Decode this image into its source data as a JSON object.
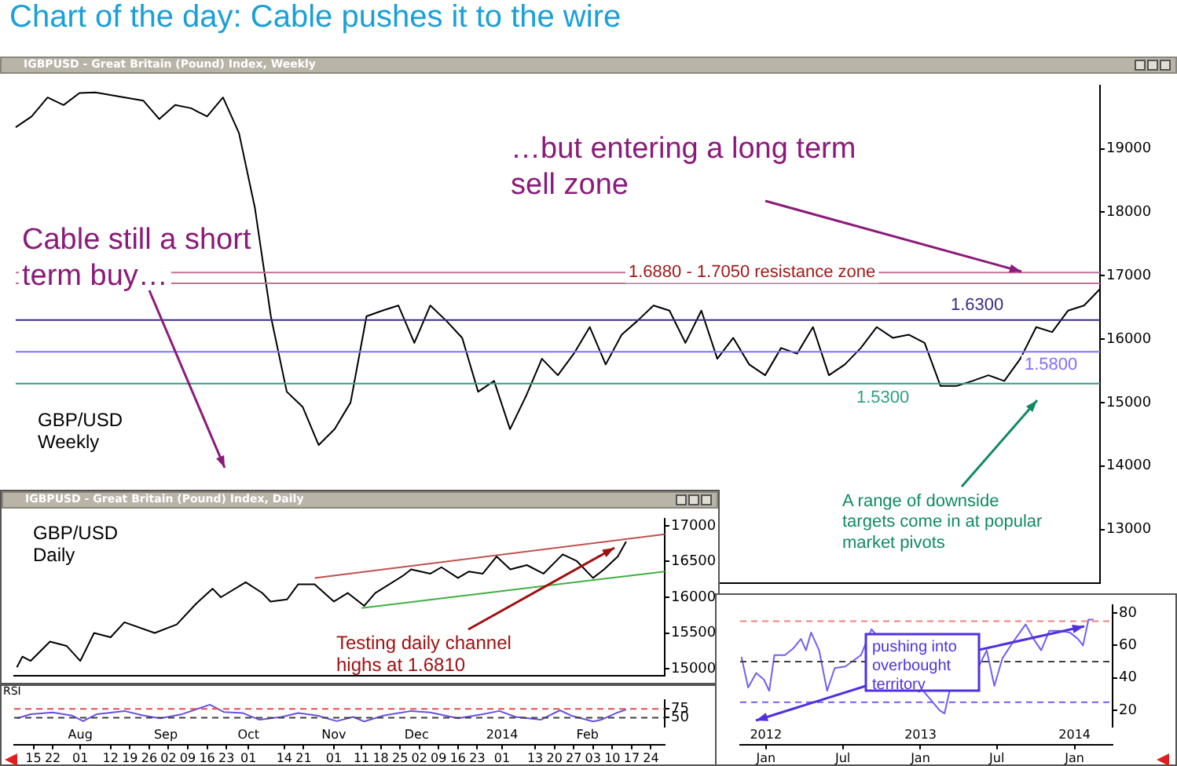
{
  "chart_data": [
    {
      "type": "line",
      "title": "Chart of the day:  Cable pushes it to the wire",
      "subtitle": "IGBPUSD - Great Britain (Pound) Index, Weekly",
      "categories": [
        null,
        null,
        null,
        null,
        null,
        null,
        null,
        null,
        null,
        null,
        null,
        null,
        null,
        null,
        null,
        null,
        null,
        null,
        null,
        null,
        null,
        null,
        null,
        null,
        null,
        null,
        null,
        null,
        null,
        null,
        null,
        null,
        null,
        null,
        null,
        null,
        null,
        null,
        null,
        null,
        null,
        null,
        null,
        null,
        null,
        null,
        null,
        null,
        null,
        null,
        null,
        null,
        null,
        null,
        null,
        null,
        null,
        null,
        null,
        null,
        null,
        null,
        null,
        null,
        null,
        null,
        null,
        null,
        null
      ],
      "values": [
        19340,
        19510,
        19810,
        19690,
        19880,
        19890,
        null,
        null,
        19760,
        19470,
        19690,
        19640,
        19510,
        19810,
        19250,
        18070,
        16360,
        15170,
        14930,
        14330,
        14580,
        15000,
        16360,
        16450,
        16530,
        15940,
        16530,
        16290,
        16020,
        15170,
        15340,
        14580,
        15100,
        15690,
        15430,
        15770,
        16190,
        15600,
        16070,
        16290,
        16530,
        16450,
        15940,
        16450,
        15690,
        16020,
        15600,
        15430,
        15860,
        15770,
        16190,
        15430,
        15600,
        15860,
        16190,
        16020,
        16070,
        15940,
        15260,
        15260,
        15340,
        15430,
        15340,
        15690,
        16190,
        16110,
        16450,
        16530,
        16790
      ],
      "color": "#000000",
      "ylim": [
        12150,
        20000
      ],
      "yticks": [
        13000,
        14000,
        15000,
        16000,
        17000,
        18000,
        19000
      ],
      "tick_labels": "y",
      "ref_lines": [
        {
          "axis": "y",
          "value": 16880,
          "color": "#c8709a"
        },
        {
          "axis": "y",
          "value": 17050,
          "color": "#c8709a"
        },
        {
          "axis": "y",
          "value": 16300,
          "color": "#3a2a80"
        },
        {
          "axis": "y",
          "value": 15800,
          "color": "#8070ff"
        },
        {
          "axis": "y",
          "value": 15300,
          "color": "#30a080"
        }
      ],
      "annotations": [
        "Cable still a short term buy…",
        "…but entering a long term sell zone",
        "GBP/USD Weekly",
        "A range of downside targets come in at popular market pivots",
        "1.6880 - 1.7050 resistance zone",
        "1.6300",
        "1.5800",
        "1.5300"
      ]
    },
    {
      "type": "line",
      "title": "IGBPUSD - Great Britain (Pound) Index, Daily",
      "series": [
        {
          "color": "#000000",
          "x": [
            "2013-07-09",
            "2013-07-11",
            "2013-07-14",
            "2013-07-21",
            "2013-07-27",
            "2013-08-01",
            "2013-08-06",
            "2013-08-12",
            "2013-08-17",
            "2013-08-28",
            "2013-09-05",
            "2013-09-12",
            "2013-09-18",
            "2013-09-21",
            "2013-09-30",
            "2013-10-06",
            "2013-10-09",
            "2013-10-15",
            "2013-10-19",
            "2013-10-25",
            "2013-11-01",
            "2013-11-06",
            "2013-11-12",
            "2013-11-16",
            "2013-11-26",
            "2013-11-29",
            "2013-12-06",
            "2013-12-10",
            "2013-12-16",
            "2013-12-20",
            "2013-12-25",
            "2013-12-30",
            "2014-01-04",
            "2014-01-10",
            "2014-01-16",
            "2014-01-23",
            "2014-01-28",
            "2014-02-03",
            "2014-02-07",
            "2014-02-12",
            "2014-02-15"
          ],
          "values": [
            15020,
            15170,
            15110,
            15380,
            15320,
            15110,
            15500,
            15440,
            15650,
            15500,
            15620,
            15910,
            16120,
            16000,
            16210,
            16060,
            15940,
            15970,
            16180,
            16180,
            15940,
            16060,
            15880,
            16060,
            16300,
            16390,
            16330,
            16420,
            16270,
            16360,
            16330,
            16570,
            16390,
            16450,
            16330,
            16600,
            16510,
            16270,
            16390,
            16570,
            16780
          ]
        },
        {
          "type": "line",
          "color": "#c05050",
          "x": [
            "2013-10-25",
            "2014-03-01"
          ],
          "values": [
            16270,
            16880
          ]
        },
        {
          "type": "line",
          "color": "#40b040",
          "x": [
            "2013-11-11",
            "2014-03-01"
          ],
          "values": [
            15850,
            16360
          ]
        }
      ],
      "xlim": [
        "2013-07-08",
        "2014-03-01"
      ],
      "ylim": [
        14900,
        17100
      ],
      "yticks": [
        15000,
        15500,
        16000,
        16500,
        17000
      ],
      "tick_labels": "y",
      "annotations": [
        "GBP/USD Daily",
        "Testing daily channel highs at 1.6810"
      ]
    },
    {
      "type": "line",
      "title": "RSI",
      "x": [
        "2013-07-09",
        "2013-07-14",
        "2013-07-22",
        "2013-07-29",
        "2013-08-02",
        "2013-08-07",
        "2013-08-17",
        "2013-08-24",
        "2013-08-30",
        "2013-09-07",
        "2013-09-17",
        "2013-09-22",
        "2013-09-29",
        "2013-10-05",
        "2013-10-13",
        "2013-10-19",
        "2013-10-26",
        "2013-11-02",
        "2013-11-08",
        "2013-11-12",
        "2013-11-19",
        "2013-11-29",
        "2013-12-06",
        "2013-12-16",
        "2013-12-25",
        "2013-12-31",
        "2014-01-06",
        "2014-01-15",
        "2014-01-22",
        "2014-01-26",
        "2014-02-03",
        "2014-02-06",
        "2014-02-12",
        "2014-02-15"
      ],
      "values": [
        48,
        60,
        65,
        56,
        40,
        60,
        69,
        56,
        48,
        60,
        87,
        66,
        63,
        44,
        52,
        63,
        56,
        40,
        52,
        39,
        56,
        69,
        65,
        48,
        60,
        69,
        52,
        44,
        71,
        56,
        39,
        44,
        65,
        73
      ],
      "color": "#6a50e0",
      "xlim": [
        "2013-07-08",
        "2014-03-01"
      ],
      "ylim": [
        25,
        100
      ],
      "yticks": [
        50,
        75
      ],
      "xticks": [
        {
          "value": "2013-07-15",
          "label": "15"
        },
        {
          "value": "2013-07-22",
          "label": "22"
        },
        {
          "value": "2013-08-01",
          "label": "01"
        },
        {
          "value": "2013-08-12",
          "label": "12"
        },
        {
          "value": "2013-08-19",
          "label": "19"
        },
        {
          "value": "2013-08-26",
          "label": "26"
        },
        {
          "value": "2013-09-02",
          "label": "02"
        },
        {
          "value": "2013-09-09",
          "label": "09"
        },
        {
          "value": "2013-09-16",
          "label": "16"
        },
        {
          "value": "2013-09-23",
          "label": "23"
        },
        {
          "value": "2013-10-01",
          "label": "01"
        },
        {
          "value": "2013-10-14",
          "label": "14"
        },
        {
          "value": "2013-10-21",
          "label": "21"
        },
        {
          "value": "2013-11-01",
          "label": "01"
        },
        {
          "value": "2013-11-11",
          "label": "11"
        },
        {
          "value": "2013-11-18",
          "label": "18"
        },
        {
          "value": "2013-11-25",
          "label": "25"
        },
        {
          "value": "2013-12-02",
          "label": "02"
        },
        {
          "value": "2013-12-09",
          "label": "09"
        },
        {
          "value": "2013-12-16",
          "label": "16"
        },
        {
          "value": "2013-12-23",
          "label": "23"
        },
        {
          "value": "2014-01-01",
          "label": "01"
        },
        {
          "value": "2014-01-13",
          "label": "13"
        },
        {
          "value": "2014-01-20",
          "label": "20"
        },
        {
          "value": "2014-01-27",
          "label": "27"
        },
        {
          "value": "2014-02-03",
          "label": "03"
        },
        {
          "value": "2014-02-10",
          "label": "10"
        },
        {
          "value": "2014-02-17",
          "label": "17"
        },
        {
          "value": "2014-02-24",
          "label": "24"
        }
      ],
      "x2lim": [
        "2013-07-08",
        "2014-03-01"
      ],
      "x2ticks": [
        {
          "value": "2013-08-01",
          "label": "Aug"
        },
        {
          "value": "2013-09-01",
          "label": "Sep"
        },
        {
          "value": "2013-10-01",
          "label": "Oct"
        },
        {
          "value": "2013-11-01",
          "label": "Nov"
        },
        {
          "value": "2013-12-01",
          "label": "Dec"
        },
        {
          "value": "2014-01-01",
          "label": "2014"
        },
        {
          "value": "2014-02-01",
          "label": "Feb"
        }
      ],
      "ref_lines": [
        {
          "axis": "y",
          "value": 75,
          "color": "#e05050",
          "line_style": "dashed"
        },
        {
          "axis": "y",
          "value": 50,
          "color": "#404040",
          "line_style": "dashed"
        }
      ]
    },
    {
      "type": "line",
      "x": [
        "2011-11-04",
        "2011-11-20",
        "2011-12-09",
        "2011-12-27",
        "2012-01-09",
        "2012-01-21",
        "2012-02-15",
        "2012-03-05",
        "2012-03-24",
        "2012-04-05",
        "2012-04-17",
        "2012-05-06",
        "2012-05-25",
        "2012-06-12",
        "2012-07-07",
        "2012-08-13",
        "2012-09-07",
        "2012-09-26",
        "2012-10-20",
        "2012-12-01",
        "2013-01-21",
        "2013-02-15",
        "2013-02-27",
        "2013-03-11",
        "2013-05-19",
        "2013-06-07",
        "2013-06-25",
        "2013-07-14",
        "2013-08-08",
        "2013-09-07",
        "2013-09-26",
        "2013-10-14",
        "2013-11-02",
        "2013-11-27",
        "2013-12-21",
        "2014-01-09",
        "2014-01-21",
        "2014-02-03",
        "2014-02-15"
      ],
      "values": [
        53,
        34,
        43,
        39,
        32,
        54,
        54,
        58,
        64,
        57,
        68,
        57,
        32,
        46,
        47,
        54,
        70,
        null,
        null,
        null,
        null,
        20,
        18,
        32,
        47,
        57,
        35,
        52,
        62,
        73,
        64,
        57,
        69,
        69,
        68,
        64,
        60,
        76,
        76
      ],
      "color": "#7060f0",
      "xlim": [
        "2011-11-01",
        "2014-04-01"
      ],
      "ylim": [
        10,
        85
      ],
      "yticks": [
        20,
        40,
        60,
        80
      ],
      "xticks": [
        {
          "value": "2012-01-01",
          "label": "Jan"
        },
        {
          "value": "2012-07-01",
          "label": "Jul"
        },
        {
          "value": "2013-01-01",
          "label": "Jan"
        },
        {
          "value": "2013-07-01",
          "label": "Jul"
        },
        {
          "value": "2014-01-01",
          "label": "Jan"
        }
      ],
      "x2lim": [
        "2011-11-01",
        "2014-04-01"
      ],
      "x2ticks": [
        {
          "value": "2012-01-01",
          "label": "2012"
        },
        {
          "value": "2013-01-01",
          "label": "2013"
        },
        {
          "value": "2014-01-01",
          "label": "2014"
        }
      ],
      "ref_lines": [
        {
          "axis": "y",
          "value": 75,
          "color": "#f08080",
          "line_style": "dashed"
        },
        {
          "axis": "y",
          "value": 50,
          "color": "#404040",
          "line_style": "dashed"
        },
        {
          "axis": "y",
          "value": 25,
          "color": "#7060f0",
          "line_style": "dashed"
        }
      ],
      "annotations": [
        "pushing into overbought territory"
      ]
    }
  ]
}
